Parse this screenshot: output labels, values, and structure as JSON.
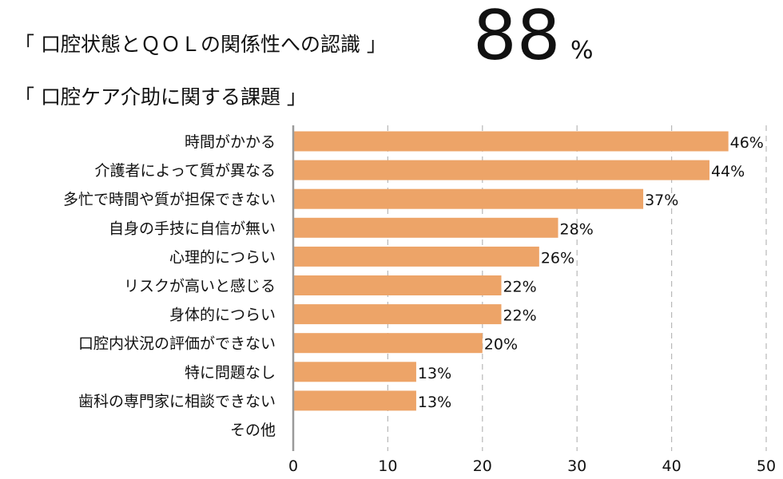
{
  "header": {
    "line1": "「 口腔状態とＱＯＬの関係性への認識 」",
    "stat_value": "88",
    "stat_unit": "%",
    "line2": "「 口腔ケア介助に関する課題 」"
  },
  "chart_data": {
    "type": "bar",
    "orientation": "horizontal",
    "categories": [
      "時間がかかる",
      "介護者によって質が異なる",
      "多忙で時間や質が担保できない",
      "自身の手技に自信が無い",
      "心理的につらい",
      "リスクが高いと感じる",
      "身体的につらい",
      "口腔内状況の評価ができない",
      "特に問題なし",
      "歯科の専門家に相談できない",
      "その他"
    ],
    "values": [
      46,
      44,
      37,
      28,
      26,
      22,
      22,
      20,
      13,
      13,
      0
    ],
    "value_labels": [
      "46%",
      "44%",
      "37%",
      "28%",
      "26%",
      "22%",
      "22%",
      "20%",
      "13%",
      "13%",
      ""
    ],
    "xlim": [
      0,
      50
    ],
    "xticks": [
      0,
      10,
      20,
      30,
      40,
      50
    ],
    "grid": "vertical-dashed",
    "bar_color": "#eda468",
    "grid_color": "#b8b8b8",
    "axis_color": "#9a9a9a"
  }
}
